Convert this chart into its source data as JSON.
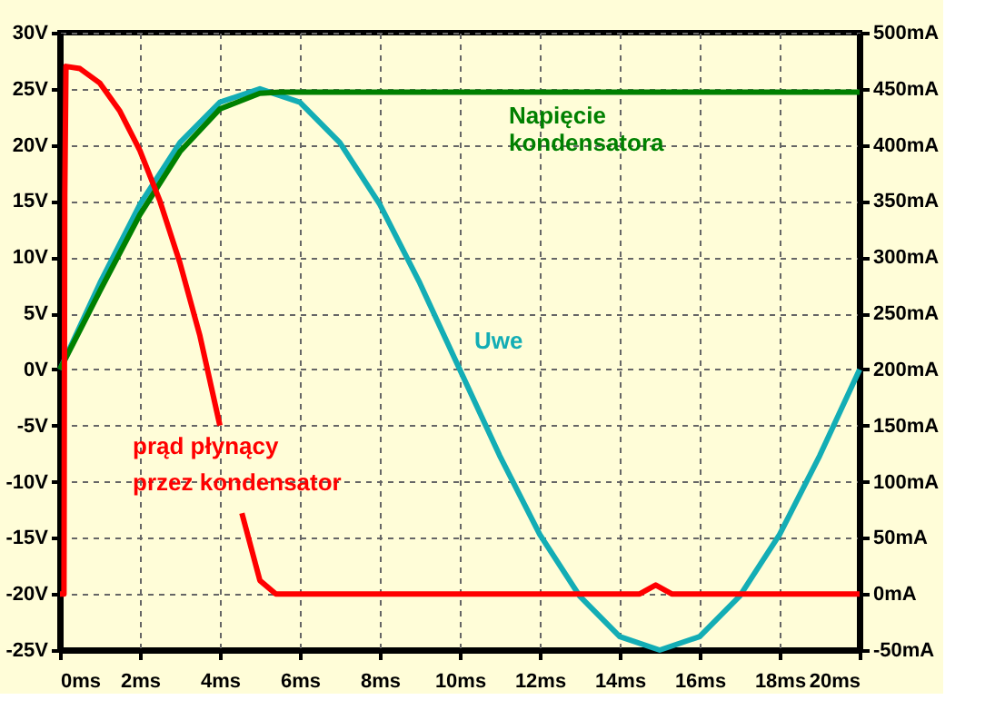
{
  "chart_data": {
    "type": "line",
    "xlim": [
      0,
      20
    ],
    "xticks": [
      {
        "value": 0,
        "label": "0ms"
      },
      {
        "value": 2,
        "label": "2ms"
      },
      {
        "value": 4,
        "label": "4ms"
      },
      {
        "value": 6,
        "label": "6ms"
      },
      {
        "value": 8,
        "label": "8ms"
      },
      {
        "value": 10,
        "label": "10ms"
      },
      {
        "value": 12,
        "label": "12ms"
      },
      {
        "value": 14,
        "label": "14ms"
      },
      {
        "value": 16,
        "label": "16ms"
      },
      {
        "value": 18,
        "label": "18ms"
      },
      {
        "value": 20,
        "label": "20ms"
      }
    ],
    "ylim": [
      -25,
      30
    ],
    "yticks": [
      {
        "value": -25,
        "label": "-25V"
      },
      {
        "value": -20,
        "label": "-20V"
      },
      {
        "value": -15,
        "label": "-15V"
      },
      {
        "value": -10,
        "label": "-10V"
      },
      {
        "value": -5,
        "label": "-5V"
      },
      {
        "value": 0,
        "label": "0V"
      },
      {
        "value": 5,
        "label": "5V"
      },
      {
        "value": 10,
        "label": "10V"
      },
      {
        "value": 15,
        "label": "15V"
      },
      {
        "value": 20,
        "label": "20V"
      },
      {
        "value": 25,
        "label": "25V"
      },
      {
        "value": 30,
        "label": "30V"
      }
    ],
    "y2lim": [
      -50,
      500
    ],
    "y2ticks": [
      {
        "value": -50,
        "label": "-50mA"
      },
      {
        "value": 0,
        "label": "0mA"
      },
      {
        "value": 50,
        "label": "50mA"
      },
      {
        "value": 100,
        "label": "100mA"
      },
      {
        "value": 150,
        "label": "150mA"
      },
      {
        "value": 200,
        "label": "200mA"
      },
      {
        "value": 250,
        "label": "250mA"
      },
      {
        "value": 300,
        "label": "300mA"
      },
      {
        "value": 350,
        "label": "350mA"
      },
      {
        "value": 400,
        "label": "400mA"
      },
      {
        "value": 450,
        "label": "450mA"
      },
      {
        "value": 500,
        "label": "500mA"
      }
    ],
    "grid": true,
    "legend": false,
    "marker": "none",
    "line_style": "solid",
    "series": [
      {
        "name": "Uwe",
        "color": "#13adb5",
        "x": [
          0,
          1,
          2,
          3,
          4,
          5,
          6,
          7,
          8,
          9,
          10,
          11,
          12,
          13,
          14,
          15,
          16,
          17,
          18,
          19,
          20
        ],
        "values": [
          0,
          7.7,
          14.7,
          20.2,
          23.8,
          25,
          23.8,
          20.2,
          14.7,
          7.7,
          0,
          -7.7,
          -14.7,
          -20.2,
          -23.8,
          -25,
          -23.8,
          -20.2,
          -14.7,
          -7.7,
          0
        ]
      },
      {
        "name": "Napięcie kondensatora",
        "color": "#008000",
        "x": [
          0,
          1,
          2,
          3,
          4,
          5,
          5.5,
          20
        ],
        "values": [
          0,
          7.0,
          13.8,
          19.4,
          23.2,
          24.6,
          24.7,
          24.7
        ]
      },
      {
        "name": "prąd płynący przez kondensator",
        "color": "#ff0000",
        "axis": "y2",
        "x": [
          0,
          0.1,
          0.12,
          0.15,
          0.5,
          1.0,
          1.5,
          2.0,
          2.5,
          3.0,
          3.5,
          4.0,
          4.3,
          4.55,
          5.0,
          5.4,
          14.5,
          14.9,
          15.3,
          20
        ],
        "values": [
          0,
          0,
          355,
          470,
          468,
          455,
          430,
          395,
          350,
          295,
          230,
          150,
          null,
          72,
          12,
          0,
          0,
          8,
          0,
          0
        ]
      }
    ]
  }
}
